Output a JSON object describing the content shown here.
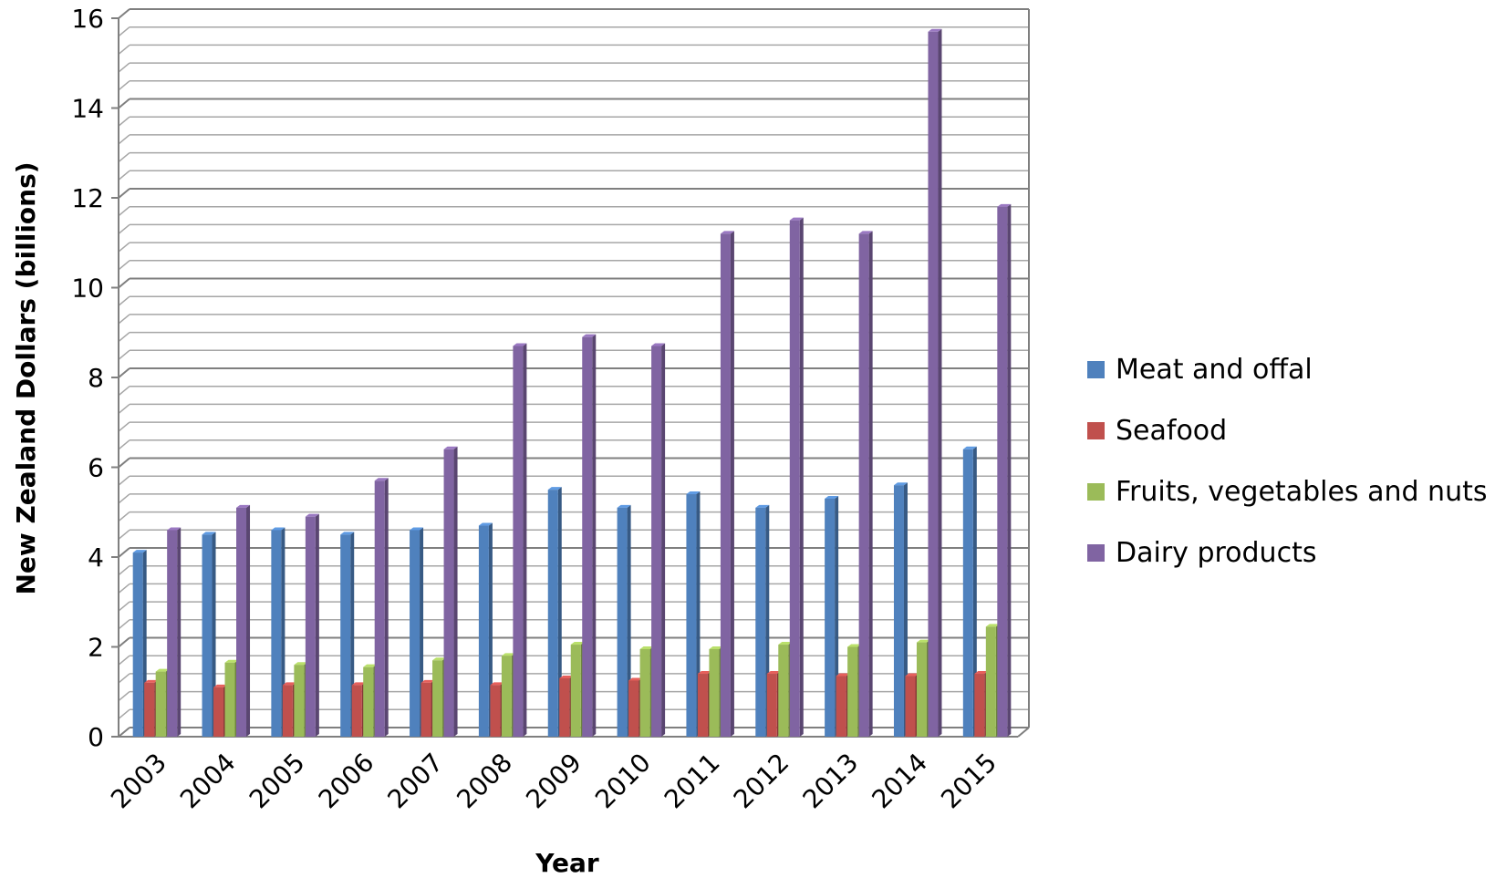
{
  "chart_data": {
    "type": "bar",
    "title": "",
    "xlabel": "Year",
    "ylabel": "New Zealand Dollars (billions)",
    "ylim": [
      0,
      16
    ],
    "y_ticks": [
      "0",
      "2",
      "4",
      "6",
      "8",
      "10",
      "12",
      "14",
      "16"
    ],
    "grid": true,
    "legend_position": "right",
    "categories": [
      "2003",
      "2004",
      "2005",
      "2006",
      "2007",
      "2008",
      "2009",
      "2010",
      "2011",
      "2012",
      "2013",
      "2014",
      "2015"
    ],
    "series": [
      {
        "name": "Meat and offal",
        "color": "#4f81bd",
        "values": [
          4.1,
          4.5,
          4.6,
          4.5,
          4.6,
          4.7,
          5.5,
          5.1,
          5.4,
          5.1,
          5.3,
          5.6,
          6.4
        ]
      },
      {
        "name": "Seafood",
        "color": "#c0504d",
        "values": [
          1.2,
          1.1,
          1.15,
          1.15,
          1.2,
          1.15,
          1.3,
          1.25,
          1.4,
          1.4,
          1.35,
          1.35,
          1.4
        ]
      },
      {
        "name": "Fruits, vegetables and nuts",
        "color": "#9bbb59",
        "values": [
          1.45,
          1.65,
          1.6,
          1.55,
          1.7,
          1.8,
          2.05,
          1.95,
          1.95,
          2.05,
          2.0,
          2.1,
          2.45
        ]
      },
      {
        "name": "Dairy products",
        "color": "#8064a2",
        "values": [
          4.6,
          5.1,
          4.9,
          5.7,
          6.4,
          8.7,
          8.9,
          8.7,
          11.2,
          11.5,
          11.2,
          15.7,
          11.8
        ]
      }
    ]
  }
}
